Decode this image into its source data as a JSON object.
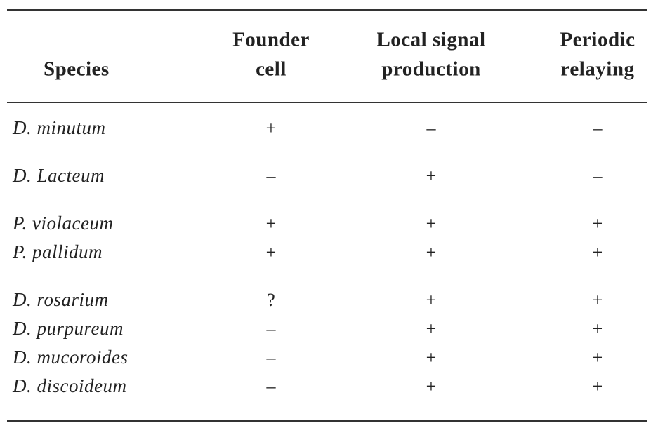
{
  "table": {
    "header": {
      "species": "Species",
      "columns": [
        [
          "Founder",
          "cell"
        ],
        [
          "Local signal",
          "production"
        ],
        [
          "Periodic",
          "relaying"
        ]
      ]
    },
    "groups": [
      [
        {
          "species": "D. minutum",
          "marks": [
            "+",
            "–",
            "–"
          ]
        }
      ],
      [
        {
          "species": "D. Lacteum",
          "marks": [
            "–",
            "+",
            "–"
          ]
        }
      ],
      [
        {
          "species": "P. violaceum",
          "marks": [
            "+",
            "+",
            "+"
          ]
        },
        {
          "species": "P. pallidum",
          "marks": [
            "+",
            "+",
            "+"
          ]
        }
      ],
      [
        {
          "species": "D. rosarium",
          "marks": [
            "?",
            "+",
            "+"
          ]
        },
        {
          "species": "D. purpureum",
          "marks": [
            "–",
            "+",
            "+"
          ]
        },
        {
          "species": "D. mucoroides",
          "marks": [
            "–",
            "+",
            "+"
          ]
        },
        {
          "species": "D. discoideum",
          "marks": [
            "–",
            "+",
            "+"
          ]
        }
      ]
    ]
  }
}
